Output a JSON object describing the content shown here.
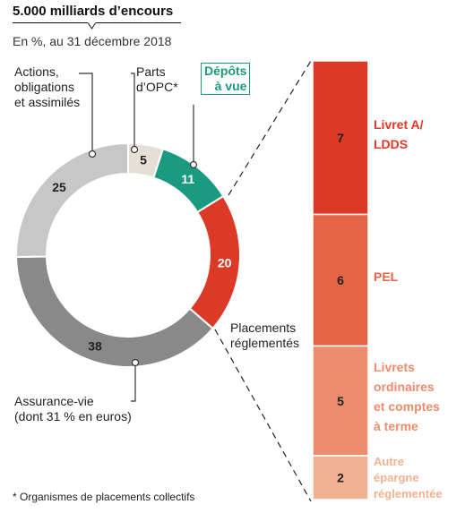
{
  "header": {
    "title": "5.000 milliards d’encours",
    "subtitle": "En %, au 31 décembre 2018"
  },
  "footnote": "* Organismes de placements collectifs",
  "labels": {
    "actions": [
      "Actions,",
      "obligations",
      "et assimilés"
    ],
    "opc": [
      "Parts",
      "d’OPC*"
    ],
    "depots": [
      "Dépôts",
      "à vue"
    ],
    "reglementes": [
      "Placements",
      "réglementés"
    ],
    "assurance": [
      "Assurance-vie",
      "(dont 31 % en euros)"
    ]
  },
  "chart_data": [
    {
      "type": "pie",
      "title": "5.000 milliards d’encours",
      "subtitle": "En %, au 31 décembre 2018",
      "donut": true,
      "slices": [
        {
          "label": "Parts d’OPC*",
          "value": 5,
          "color": "#e4e0d6"
        },
        {
          "label": "Dépôts à vue",
          "value": 11,
          "color": "#1a9a7e"
        },
        {
          "label": "Placements réglementés",
          "value": 20,
          "color": "#dc3a26"
        },
        {
          "label": "Assurance-vie (dont 31 % en euros)",
          "value": 38,
          "color": "#898989"
        },
        {
          "label": "Actions, obligations et assimilés",
          "value": 25,
          "color": "#c7c7c7"
        }
      ]
    },
    {
      "type": "bar",
      "stacked": true,
      "categories": [
        "Livret A/ LDDS",
        "PEL",
        "Livrets ordinaires et comptes à terme",
        "Autre épargne réglementée"
      ],
      "values": [
        7,
        6,
        5,
        2
      ],
      "colors": [
        "#dc3a26",
        "#e36446",
        "#eb8c6c",
        "#f2b191"
      ]
    }
  ]
}
